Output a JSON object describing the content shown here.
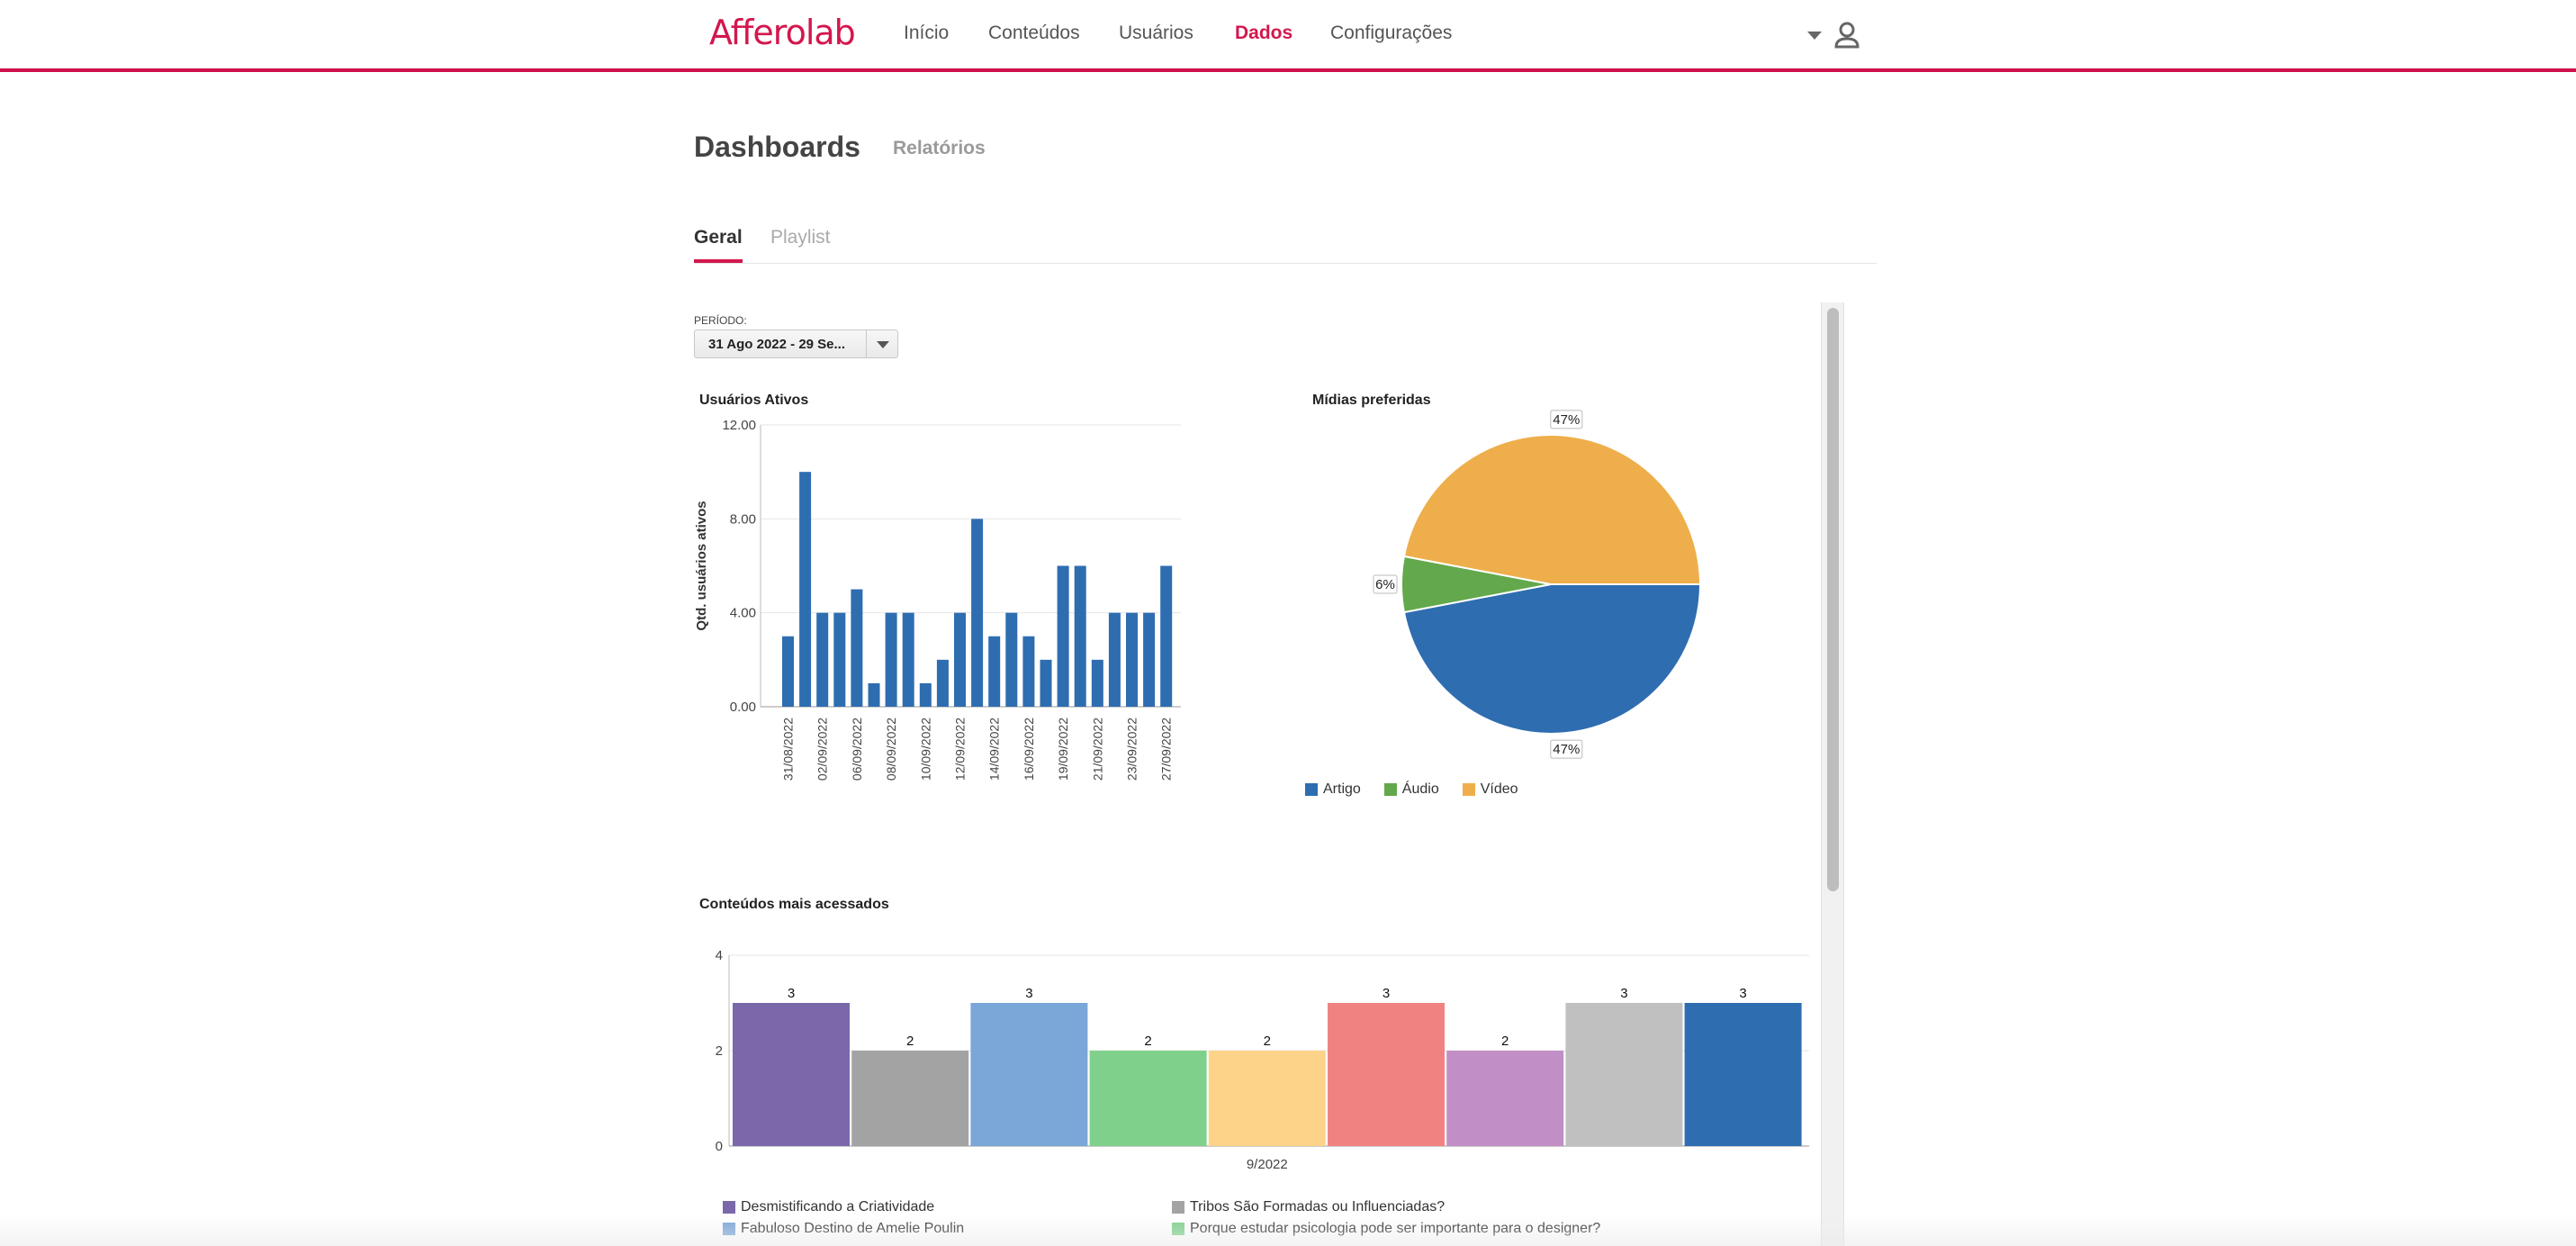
{
  "app": {
    "logo": "Afferolab"
  },
  "nav": [
    {
      "label": "Início",
      "active": false
    },
    {
      "label": "Conteúdos",
      "active": false
    },
    {
      "label": "Usuários",
      "active": false
    },
    {
      "label": "Dados",
      "active": true
    },
    {
      "label": "Configurações",
      "active": false
    }
  ],
  "page": {
    "title": "Dashboards",
    "secondary": "Relatórios"
  },
  "tabs": [
    {
      "label": "Geral",
      "active": true
    },
    {
      "label": "Playlist",
      "active": false
    }
  ],
  "filter": {
    "label": "PERÍODO:",
    "value": "31 Ago 2022 - 29 Se..."
  },
  "colors": {
    "brand": "#d3174d",
    "blue": "#2e6db0",
    "green": "#63a84c",
    "orange": "#eeae4b"
  },
  "chart_data": [
    {
      "type": "bar",
      "title": "Usuários Ativos",
      "ylabel": "Qtd. usuários ativos",
      "ylim": [
        0,
        12
      ],
      "yticks": [
        "0.00",
        "4.00",
        "8.00",
        "12.00"
      ],
      "xticklabels": [
        "31/08/2022",
        "02/09/2022",
        "06/09/2022",
        "08/09/2022",
        "10/09/2022",
        "12/09/2022",
        "14/09/2022",
        "16/09/2022",
        "19/09/2022",
        "21/09/2022",
        "23/09/2022",
        "27/09/2022"
      ],
      "values": [
        3,
        10,
        4,
        4,
        5,
        1,
        4,
        4,
        1,
        2,
        4,
        8,
        3,
        4,
        3,
        2,
        6,
        6,
        2,
        4,
        4,
        4,
        6
      ],
      "color": "#2e6db0"
    },
    {
      "type": "pie",
      "title": "Mídias preferidas",
      "slices": [
        {
          "name": "Artigo",
          "value": 47,
          "label": "47%",
          "color": "#2e6db0"
        },
        {
          "name": "Áudio",
          "value": 6,
          "label": "6%",
          "color": "#63a84c"
        },
        {
          "name": "Vídeo",
          "value": 47,
          "label": "47%",
          "color": "#eeae4b"
        }
      ],
      "legend": "bottom"
    },
    {
      "type": "bar",
      "title": "Conteúdos mais acessados",
      "xlabel": "9/2022",
      "ylim": [
        0,
        4
      ],
      "yticks": [
        "0",
        "2",
        "4"
      ],
      "series": [
        {
          "name": "Desmistificando a Criatividade",
          "value": 3,
          "color": "#7b68ab"
        },
        {
          "name": "Tribos São Formadas ou Influenciadas?",
          "value": 2,
          "color": "#a3a3a3"
        },
        {
          "name": "Fabuloso Destino de Amelie Poulin",
          "value": 3,
          "color": "#7ba6d8"
        },
        {
          "name": "Porque estudar psicologia pode ser importante para o designer?",
          "value": 2,
          "color": "#7fd08b"
        },
        {
          "name": "",
          "value": 2,
          "color": "#fdd38a"
        },
        {
          "name": "",
          "value": 3,
          "color": "#f08382"
        },
        {
          "name": "",
          "value": 2,
          "color": "#c18fc6"
        },
        {
          "name": "",
          "value": 3,
          "color": "#c0c0c0"
        },
        {
          "name": "",
          "value": 3,
          "color": "#2e6db0"
        }
      ]
    }
  ]
}
